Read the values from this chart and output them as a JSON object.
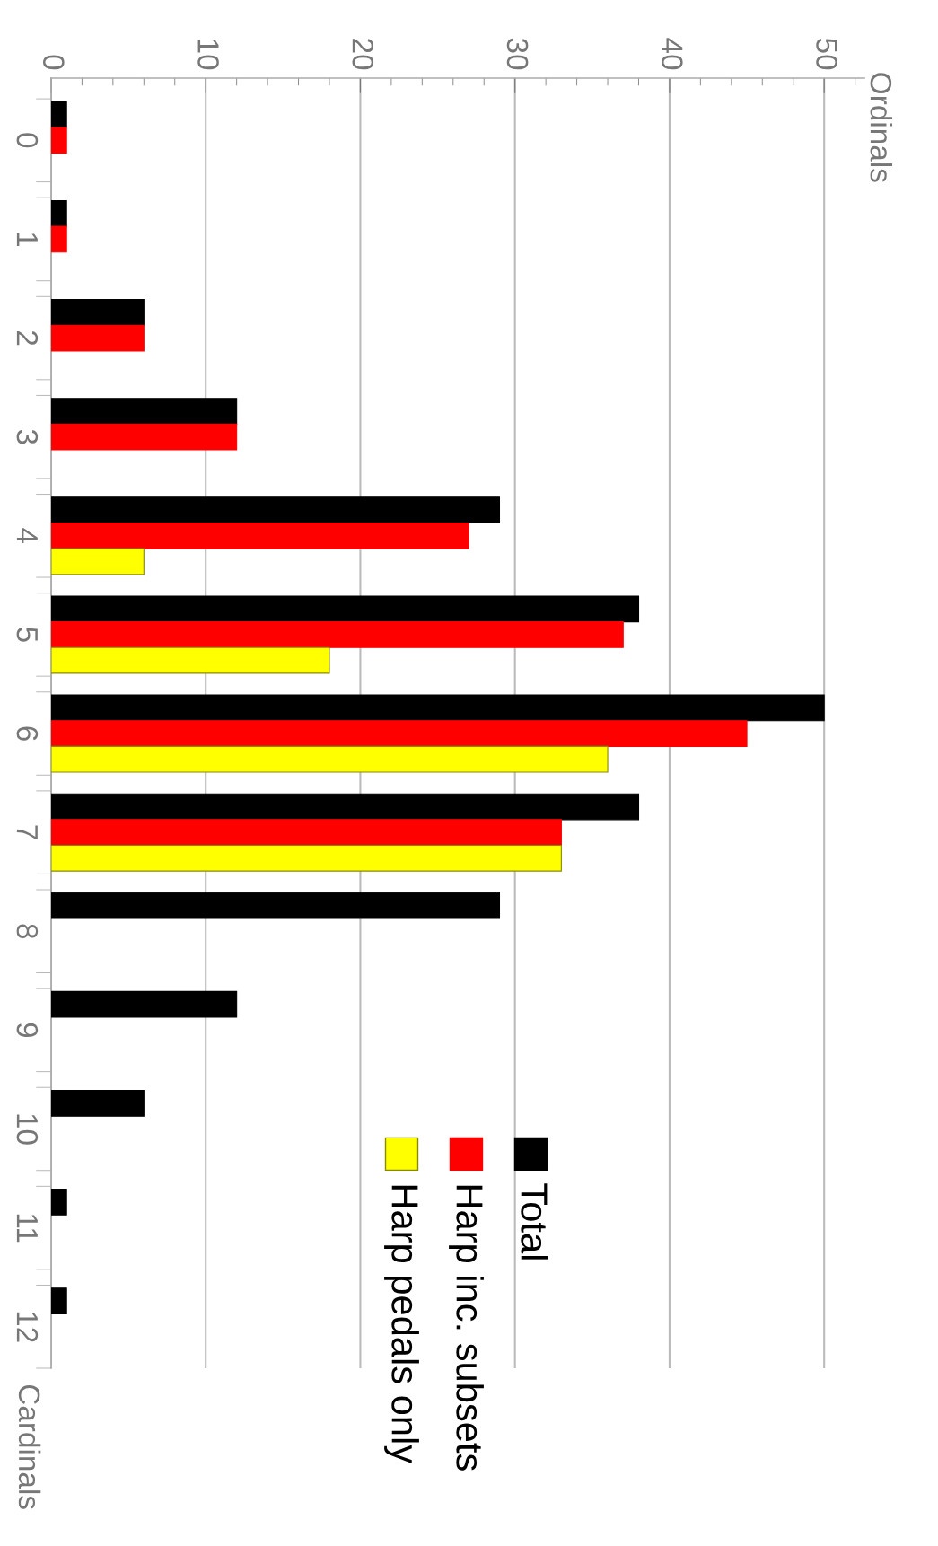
{
  "chart_data": {
    "type": "bar",
    "orientation": "horizontal",
    "ylabel": "Ordinals",
    "annotations": [
      "Cardinals"
    ],
    "categories": [
      "0",
      "1",
      "2",
      "3",
      "4",
      "5",
      "6",
      "7",
      "8",
      "9",
      "10",
      "11",
      "12"
    ],
    "series": [
      {
        "name": "Total",
        "color": "#000000",
        "values": [
          1,
          1,
          6,
          12,
          29,
          38,
          50,
          38,
          29,
          12,
          6,
          1,
          1
        ]
      },
      {
        "name": "Harp inc. subsets",
        "color": "#ff0000",
        "values": [
          1,
          1,
          6,
          12,
          27,
          37,
          45,
          33,
          null,
          null,
          null,
          null,
          null
        ]
      },
      {
        "name": "Harp pedals only",
        "color": "#ffff00",
        "values": [
          null,
          null,
          null,
          null,
          6,
          18,
          36,
          33,
          null,
          null,
          null,
          null,
          null
        ]
      }
    ],
    "xlim": [
      0,
      52.6
    ],
    "xticks": [
      0,
      {
        "value": 2,
        "label": null
      },
      {
        "value": 4,
        "label": null
      },
      {
        "value": 6,
        "label": null
      },
      {
        "value": 8,
        "label": null
      },
      10,
      {
        "value": 12,
        "label": null
      },
      {
        "value": 14,
        "label": null
      },
      {
        "value": 16,
        "label": null
      },
      {
        "value": 18,
        "label": null
      },
      20,
      {
        "value": 22,
        "label": null
      },
      {
        "value": 24,
        "label": null
      },
      {
        "value": 26,
        "label": null
      },
      {
        "value": 28,
        "label": null
      },
      30,
      {
        "value": 32,
        "label": null
      },
      {
        "value": 34,
        "label": null
      },
      {
        "value": 36,
        "label": null
      },
      {
        "value": 38,
        "label": null
      },
      40,
      {
        "value": 42,
        "label": null
      },
      {
        "value": 44,
        "label": null
      },
      {
        "value": 46,
        "label": null
      },
      {
        "value": 48,
        "label": null
      },
      50,
      {
        "value": 52,
        "label": null
      }
    ],
    "grid": "x",
    "legend": "bottom right"
  }
}
